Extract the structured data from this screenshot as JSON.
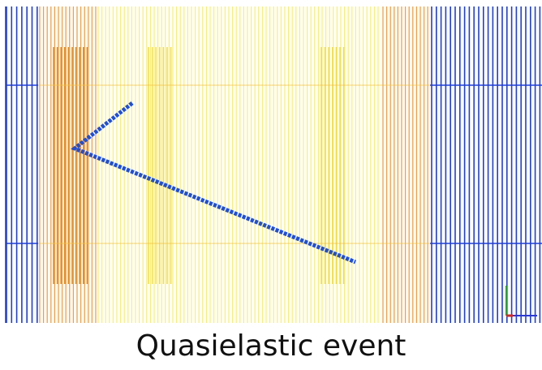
{
  "caption": "Quasielastic event"
}
